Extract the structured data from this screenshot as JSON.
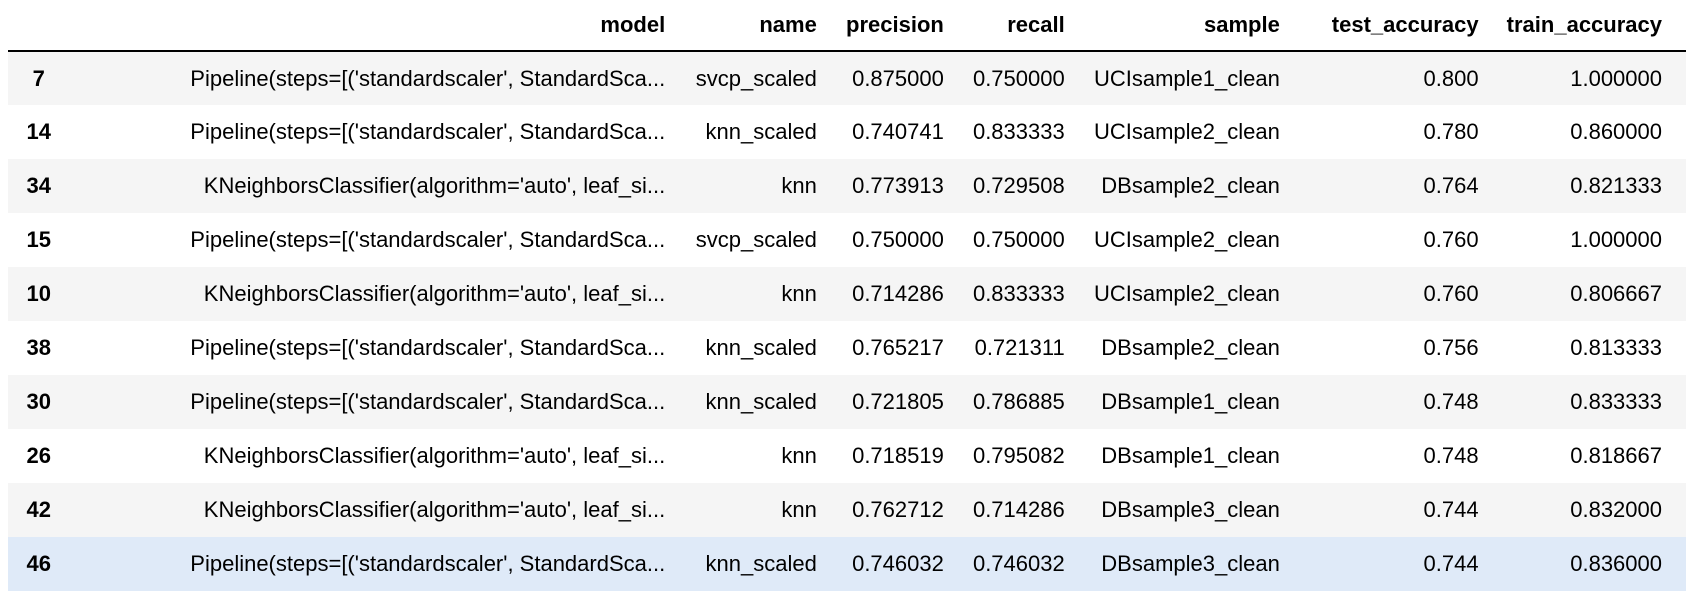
{
  "table": {
    "columns": [
      "",
      "model",
      "name",
      "precision",
      "recall",
      "sample",
      "test_accuracy",
      "train_accuracy"
    ],
    "hover_row": 9,
    "rows": [
      {
        "index": "7",
        "model": "Pipeline(steps=[('standardscaler', StandardSca...",
        "name": "svcp_scaled",
        "precision": "0.875000",
        "recall": "0.750000",
        "sample": "UCIsample1_clean",
        "test_accuracy": "0.800",
        "train_accuracy": "1.000000"
      },
      {
        "index": "14",
        "model": "Pipeline(steps=[('standardscaler', StandardSca...",
        "name": "knn_scaled",
        "precision": "0.740741",
        "recall": "0.833333",
        "sample": "UCIsample2_clean",
        "test_accuracy": "0.780",
        "train_accuracy": "0.860000"
      },
      {
        "index": "34",
        "model": "KNeighborsClassifier(algorithm='auto', leaf_si...",
        "name": "knn",
        "precision": "0.773913",
        "recall": "0.729508",
        "sample": "DBsample2_clean",
        "test_accuracy": "0.764",
        "train_accuracy": "0.821333"
      },
      {
        "index": "15",
        "model": "Pipeline(steps=[('standardscaler', StandardSca...",
        "name": "svcp_scaled",
        "precision": "0.750000",
        "recall": "0.750000",
        "sample": "UCIsample2_clean",
        "test_accuracy": "0.760",
        "train_accuracy": "1.000000"
      },
      {
        "index": "10",
        "model": "KNeighborsClassifier(algorithm='auto', leaf_si...",
        "name": "knn",
        "precision": "0.714286",
        "recall": "0.833333",
        "sample": "UCIsample2_clean",
        "test_accuracy": "0.760",
        "train_accuracy": "0.806667"
      },
      {
        "index": "38",
        "model": "Pipeline(steps=[('standardscaler', StandardSca...",
        "name": "knn_scaled",
        "precision": "0.765217",
        "recall": "0.721311",
        "sample": "DBsample2_clean",
        "test_accuracy": "0.756",
        "train_accuracy": "0.813333"
      },
      {
        "index": "30",
        "model": "Pipeline(steps=[('standardscaler', StandardSca...",
        "name": "knn_scaled",
        "precision": "0.721805",
        "recall": "0.786885",
        "sample": "DBsample1_clean",
        "test_accuracy": "0.748",
        "train_accuracy": "0.833333"
      },
      {
        "index": "26",
        "model": "KNeighborsClassifier(algorithm='auto', leaf_si...",
        "name": "knn",
        "precision": "0.718519",
        "recall": "0.795082",
        "sample": "DBsample1_clean",
        "test_accuracy": "0.748",
        "train_accuracy": "0.818667"
      },
      {
        "index": "42",
        "model": "KNeighborsClassifier(algorithm='auto', leaf_si...",
        "name": "knn",
        "precision": "0.762712",
        "recall": "0.714286",
        "sample": "DBsample3_clean",
        "test_accuracy": "0.744",
        "train_accuracy": "0.832000"
      },
      {
        "index": "46",
        "model": "Pipeline(steps=[('standardscaler', StandardSca...",
        "name": "knn_scaled",
        "precision": "0.746032",
        "recall": "0.746032",
        "sample": "DBsample3_clean",
        "test_accuracy": "0.744",
        "train_accuracy": "0.836000"
      }
    ]
  }
}
